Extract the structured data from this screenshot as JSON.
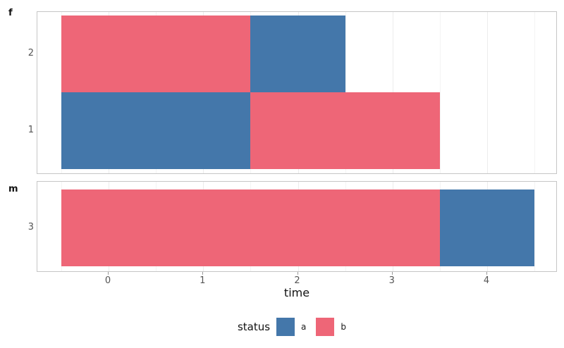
{
  "chart_data": {
    "type": "bar",
    "orientation": "horizontal",
    "stacked": true,
    "title": "",
    "xlabel": "time",
    "ylabel": "",
    "xlim": [
      -0.75,
      4.75
    ],
    "xticks": [
      0,
      1,
      2,
      3,
      4
    ],
    "grid": "vertical major and minor gridlines, white panel with light gray border",
    "legend_position": "bottom-center",
    "legend_title": "status",
    "series": [
      {
        "name": "a",
        "color": "#4477AA"
      },
      {
        "name": "b",
        "color": "#EE6677"
      }
    ],
    "facets": [
      {
        "label": "f",
        "rows": [
          {
            "category": "2",
            "segments": [
              {
                "status": "b",
                "start": -0.5,
                "end": 1.5
              },
              {
                "status": "a",
                "start": 1.5,
                "end": 2.5
              }
            ]
          },
          {
            "category": "1",
            "segments": [
              {
                "status": "a",
                "start": -0.5,
                "end": 1.5
              },
              {
                "status": "b",
                "start": 1.5,
                "end": 3.5
              }
            ]
          }
        ]
      },
      {
        "label": "m",
        "rows": [
          {
            "category": "3",
            "segments": [
              {
                "status": "b",
                "start": -0.5,
                "end": 3.5
              },
              {
                "status": "a",
                "start": 3.5,
                "end": 4.5
              }
            ]
          }
        ]
      }
    ]
  }
}
